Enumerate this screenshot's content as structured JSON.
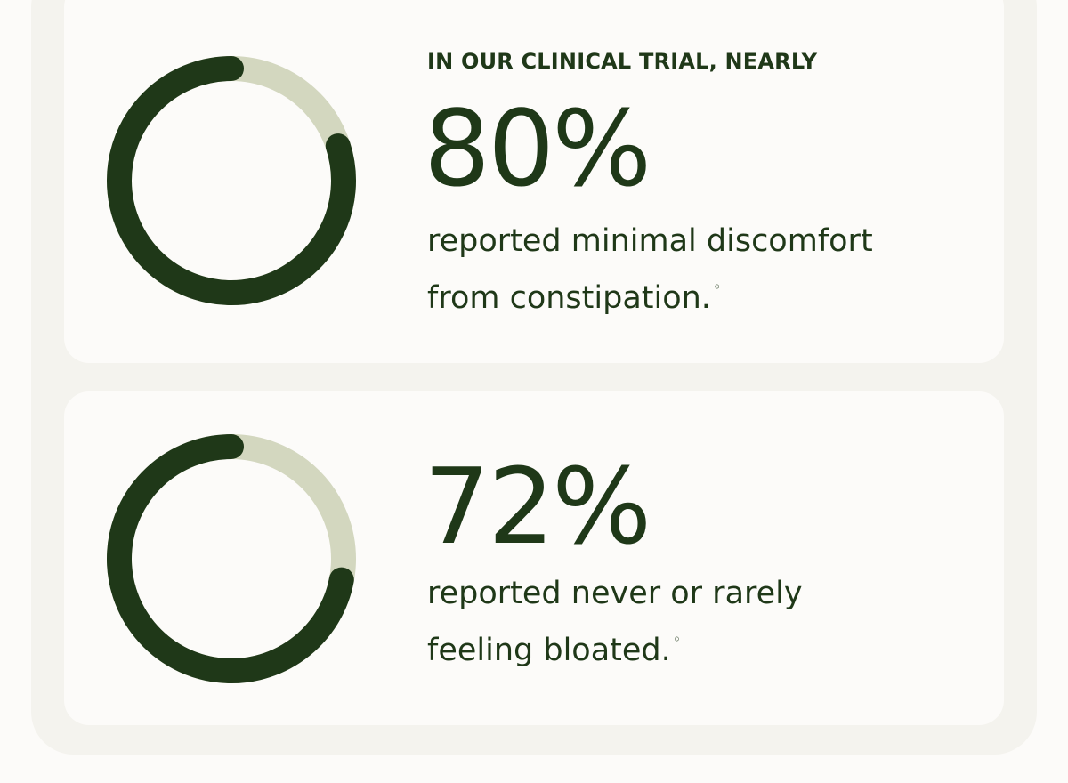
{
  "cards": [
    {
      "eyebrow": "IN OUR CLINICAL TRIAL, NEARLY",
      "value": 80,
      "value_label": "80%",
      "description_lines": [
        "reported minimal discomfort",
        "from constipation."
      ],
      "footnote": "◦"
    },
    {
      "value": 72,
      "value_label": "72%",
      "description_lines": [
        "reported never or rarely",
        "feeling bloated."
      ],
      "footnote": "◦"
    }
  ],
  "colors": {
    "ring": "#1f3818",
    "track": "#d3d7bf"
  }
}
